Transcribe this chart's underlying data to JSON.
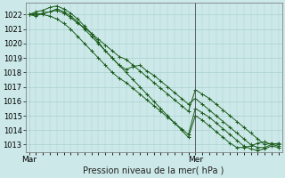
{
  "title": "Pression niveau de la mer( hPa )",
  "bg_color": "#cce8e8",
  "grid_color": "#aad0d0",
  "line_color": "#1a5c1a",
  "marker_color": "#1a5c1a",
  "ylim": [
    1012.5,
    1022.8
  ],
  "yticks": [
    1013,
    1014,
    1015,
    1016,
    1017,
    1018,
    1019,
    1020,
    1021,
    1022
  ],
  "xtick_labels": [
    "Mar",
    "Mer"
  ],
  "xtick_positions": [
    0,
    24
  ],
  "vline_x": 24,
  "n_points": 37,
  "series": [
    [
      1022.0,
      1021.9,
      1022.1,
      1022.2,
      1022.3,
      1022.1,
      1021.8,
      1021.4,
      1021.1,
      1020.7,
      1020.3,
      1019.9,
      1019.5,
      1019.1,
      1018.9,
      1018.5,
      1018.1,
      1017.7,
      1017.3,
      1016.9,
      1016.5,
      1016.1,
      1015.7,
      1015.3,
      1016.8,
      1016.5,
      1016.2,
      1015.8,
      1015.4,
      1015.0,
      1014.6,
      1014.2,
      1013.8,
      1013.4,
      1013.0,
      1013.1,
      1013.0
    ],
    [
      1022.0,
      1022.0,
      1022.1,
      1022.2,
      1022.4,
      1022.2,
      1021.9,
      1021.5,
      1021.0,
      1020.5,
      1020.0,
      1019.5,
      1019.0,
      1018.5,
      1018.2,
      1018.4,
      1018.5,
      1018.1,
      1017.8,
      1017.4,
      1017.0,
      1016.6,
      1016.2,
      1015.8,
      1016.2,
      1015.8,
      1015.4,
      1015.0,
      1014.6,
      1014.2,
      1013.8,
      1013.4,
      1013.0,
      1012.8,
      1012.8,
      1013.0,
      1013.1
    ],
    [
      1022.0,
      1022.1,
      1022.0,
      1021.9,
      1021.7,
      1021.4,
      1021.0,
      1020.5,
      1020.0,
      1019.5,
      1019.0,
      1018.5,
      1018.0,
      1017.6,
      1017.3,
      1016.9,
      1016.5,
      1016.1,
      1015.7,
      1015.3,
      1014.9,
      1014.5,
      1014.1,
      1013.7,
      1015.5,
      1015.2,
      1014.9,
      1014.5,
      1014.1,
      1013.7,
      1013.3,
      1012.9,
      1012.7,
      1012.6,
      1012.7,
      1012.9,
      1012.8
    ],
    [
      1022.0,
      1022.2,
      1022.3,
      1022.5,
      1022.6,
      1022.4,
      1022.1,
      1021.7,
      1021.2,
      1020.7,
      1020.1,
      1019.5,
      1019.0,
      1018.5,
      1018.0,
      1017.5,
      1017.0,
      1016.5,
      1016.0,
      1015.5,
      1015.0,
      1014.5,
      1014.0,
      1013.5,
      1015.0,
      1014.7,
      1014.3,
      1013.9,
      1013.5,
      1013.1,
      1012.8,
      1012.8,
      1012.9,
      1013.1,
      1013.2,
      1013.0,
      1012.9
    ]
  ]
}
